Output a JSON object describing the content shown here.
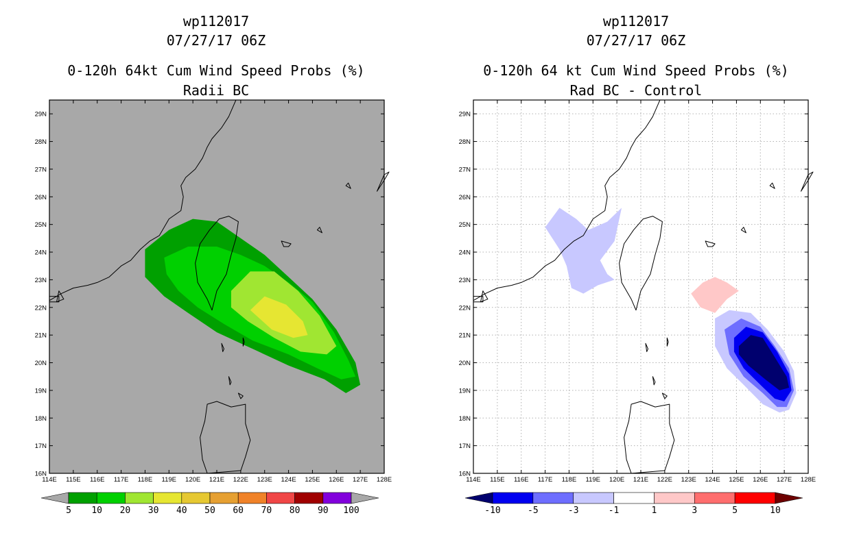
{
  "chart_data": [
    {
      "type": "contour-map",
      "storm_id": "wp112017",
      "datetime": "07/27/17 06Z",
      "title": "0-120h 64kt Cum Wind Speed Probs (%)",
      "subtitle": "Radii BC",
      "background": "#a8a8a8",
      "grid": false,
      "xlim": [
        114,
        128
      ],
      "ylim": [
        16,
        29.5
      ],
      "x_tick_labels": [
        "114E",
        "115E",
        "116E",
        "117E",
        "118E",
        "119E",
        "120E",
        "121E",
        "122E",
        "123E",
        "124E",
        "125E",
        "126E",
        "127E",
        "128E"
      ],
      "y_tick_labels": [
        "16N",
        "17N",
        "18N",
        "19N",
        "20N",
        "21N",
        "22N",
        "23N",
        "24N",
        "25N",
        "26N",
        "27N",
        "28N",
        "29N"
      ],
      "colorbar": {
        "labels": [
          "5",
          "10",
          "20",
          "30",
          "40",
          "50",
          "60",
          "70",
          "80",
          "90",
          "100"
        ],
        "colors": [
          "#a8a8a8",
          "#00a000",
          "#00d000",
          "#a0e632",
          "#e6e632",
          "#e6c832",
          "#e6a032",
          "#f08228",
          "#f04646",
          "#a00000",
          "#8200dc",
          "#a8a8a8"
        ]
      },
      "contours": [
        {
          "level": "5-10",
          "color": "#00a000",
          "polygon": [
            [
              118,
              24.1
            ],
            [
              119,
              24.8
            ],
            [
              120,
              25.2
            ],
            [
              121,
              25.1
            ],
            [
              122,
              24.5
            ],
            [
              123,
              23.9
            ],
            [
              124,
              23.1
            ],
            [
              125,
              22.3
            ],
            [
              126,
              21.2
            ],
            [
              126.8,
              20
            ],
            [
              127,
              19.2
            ],
            [
              126.4,
              18.9
            ],
            [
              125.5,
              19.4
            ],
            [
              124,
              19.9
            ],
            [
              122.5,
              20.5
            ],
            [
              121,
              21.1
            ],
            [
              119.8,
              21.8
            ],
            [
              118.8,
              22.4
            ],
            [
              118,
              23.1
            ]
          ]
        },
        {
          "level": "10-20",
          "color": "#00d000",
          "polygon": [
            [
              118.8,
              23.8
            ],
            [
              119.8,
              24.2
            ],
            [
              121,
              24.2
            ],
            [
              122,
              23.9
            ],
            [
              123,
              23.5
            ],
            [
              124,
              22.9
            ],
            [
              125,
              22.2
            ],
            [
              125.9,
              21.1
            ],
            [
              126.5,
              20.1
            ],
            [
              126.8,
              19.5
            ],
            [
              126.2,
              19.4
            ],
            [
              125.2,
              19.8
            ],
            [
              124,
              20.3
            ],
            [
              122.5,
              20.8
            ],
            [
              121.3,
              21.4
            ],
            [
              120.2,
              22
            ],
            [
              119.4,
              22.6
            ],
            [
              118.9,
              23.2
            ]
          ]
        },
        {
          "level": "20-30",
          "color": "#a0e632",
          "polygon": [
            [
              121.6,
              22.6
            ],
            [
              122.4,
              23.3
            ],
            [
              123.4,
              23.3
            ],
            [
              124.4,
              22.6
            ],
            [
              125.3,
              21.7
            ],
            [
              126,
              20.6
            ],
            [
              125.6,
              20.3
            ],
            [
              124.5,
              20.4
            ],
            [
              123.4,
              20.9
            ],
            [
              122.3,
              21.5
            ],
            [
              121.6,
              22
            ]
          ]
        },
        {
          "level": "30-40",
          "color": "#e6e632",
          "polygon": [
            [
              122.4,
              21.9
            ],
            [
              123,
              22.4
            ],
            [
              123.9,
              22.1
            ],
            [
              124.6,
              21.5
            ],
            [
              124.8,
              21
            ],
            [
              124.2,
              20.9
            ],
            [
              123.3,
              21.2
            ]
          ]
        }
      ]
    },
    {
      "type": "contour-map",
      "storm_id": "wp112017",
      "datetime": "07/27/17 06Z",
      "title": "0-120h 64 kt Cum Wind Speed Probs (%)",
      "subtitle": "Rad BC - Control",
      "background": "#ffffff",
      "grid": true,
      "xlim": [
        114,
        128
      ],
      "ylim": [
        16,
        29.5
      ],
      "x_tick_labels": [
        "114E",
        "115E",
        "116E",
        "117E",
        "118E",
        "119E",
        "120E",
        "121E",
        "122E",
        "123E",
        "124E",
        "125E",
        "126E",
        "127E",
        "128E"
      ],
      "y_tick_labels": [
        "16N",
        "17N",
        "18N",
        "19N",
        "20N",
        "21N",
        "22N",
        "23N",
        "24N",
        "25N",
        "26N",
        "27N",
        "28N",
        "29N"
      ],
      "colorbar": {
        "labels": [
          "-10",
          "-5",
          "-3",
          "-1",
          "1",
          "3",
          "5",
          "10"
        ],
        "colors": [
          "#00006e",
          "#0000f0",
          "#6e6eff",
          "#c8c8ff",
          "#ffffff",
          "#ffc8c8",
          "#ff6e6e",
          "#ff0000",
          "#6e0000"
        ]
      },
      "contours": [
        {
          "level": "-3 to -1",
          "color": "#c8c8ff",
          "polygon": [
            [
              117,
              24.9
            ],
            [
              117.6,
              25.6
            ],
            [
              118.3,
              25.2
            ],
            [
              118.8,
              24.8
            ],
            [
              119.6,
              25.1
            ],
            [
              120.2,
              25.6
            ],
            [
              119.9,
              24.4
            ],
            [
              119.3,
              23.7
            ],
            [
              119.6,
              23.2
            ],
            [
              119.9,
              23
            ],
            [
              119.2,
              22.8
            ],
            [
              118.6,
              22.5
            ],
            [
              118.1,
              22.7
            ],
            [
              117.9,
              23.5
            ],
            [
              117.6,
              24.1
            ]
          ]
        },
        {
          "level": "-3 to -1",
          "color": "#c8c8ff",
          "polygon": [
            [
              124.1,
              21.6
            ],
            [
              124.7,
              21.9
            ],
            [
              125.6,
              21.8
            ],
            [
              126.3,
              21.2
            ],
            [
              127,
              20.4
            ],
            [
              127.4,
              19.7
            ],
            [
              127.5,
              18.9
            ],
            [
              127.2,
              18.3
            ],
            [
              126.8,
              18.2
            ],
            [
              126.1,
              18.5
            ],
            [
              125.3,
              19.2
            ],
            [
              124.6,
              19.8
            ],
            [
              124.1,
              20.6
            ]
          ]
        },
        {
          "level": "-5 to -3",
          "color": "#6e6eff",
          "polygon": [
            [
              124.5,
              21.2
            ],
            [
              125.2,
              21.6
            ],
            [
              126,
              21.3
            ],
            [
              126.6,
              20.6
            ],
            [
              127.2,
              19.8
            ],
            [
              127.4,
              19
            ],
            [
              127.1,
              18.4
            ],
            [
              126.7,
              18.4
            ],
            [
              126.1,
              18.9
            ],
            [
              125.3,
              19.5
            ],
            [
              124.7,
              20.3
            ]
          ]
        },
        {
          "level": "-10 to -5",
          "color": "#0000f0",
          "polygon": [
            [
              124.9,
              20.9
            ],
            [
              125.4,
              21.3
            ],
            [
              126.1,
              21.1
            ],
            [
              126.7,
              20.4
            ],
            [
              127.2,
              19.6
            ],
            [
              127.3,
              19
            ],
            [
              127,
              18.6
            ],
            [
              126.6,
              18.7
            ],
            [
              126,
              19.2
            ],
            [
              125.3,
              19.8
            ],
            [
              124.9,
              20.4
            ]
          ]
        },
        {
          "level": "< -10",
          "color": "#00006e",
          "polygon": [
            [
              125.1,
              20.6
            ],
            [
              125.6,
              21
            ],
            [
              126.1,
              20.9
            ],
            [
              126.6,
              20.2
            ],
            [
              127.1,
              19.5
            ],
            [
              127.2,
              19.1
            ],
            [
              126.8,
              19
            ],
            [
              126.2,
              19.4
            ],
            [
              125.5,
              19.9
            ],
            [
              125.1,
              20.3
            ]
          ]
        },
        {
          "level": "1 to 3",
          "color": "#ffc8c8",
          "polygon": [
            [
              123.1,
              22.5
            ],
            [
              123.6,
              22.9
            ],
            [
              124.1,
              23.1
            ],
            [
              124.6,
              22.9
            ],
            [
              125.1,
              22.6
            ],
            [
              124.6,
              22.3
            ],
            [
              124.1,
              21.8
            ],
            [
              123.5,
              22
            ]
          ]
        }
      ]
    }
  ]
}
